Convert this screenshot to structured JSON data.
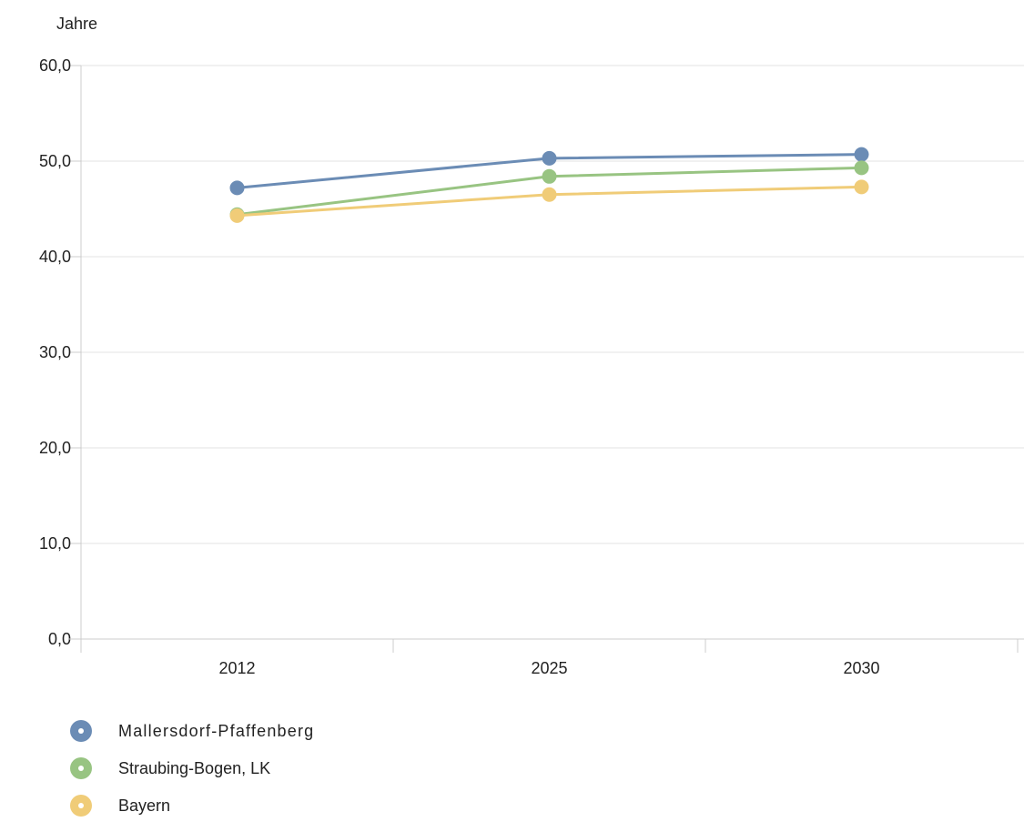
{
  "chart_data": {
    "type": "line",
    "title": "",
    "ylabel": "Jahre",
    "xlabel": "",
    "categories": [
      "2012",
      "2025",
      "2030"
    ],
    "ylim": [
      0,
      60
    ],
    "yticks": [
      "0,0",
      "10,0",
      "20,0",
      "30,0",
      "40,0",
      "50,0",
      "60,0"
    ],
    "grid": true,
    "legend_position": "bottom-left",
    "series": [
      {
        "name": "Mallersdorf-Pfaffenberg",
        "color": "#6b8cb5",
        "values": [
          47.2,
          50.3,
          50.7
        ]
      },
      {
        "name": "Straubing-Bogen, LK",
        "color": "#98c482",
        "values": [
          44.4,
          48.4,
          49.3
        ]
      },
      {
        "name": "Bayern",
        "color": "#f0cc78",
        "values": [
          44.3,
          46.5,
          47.3
        ]
      }
    ]
  }
}
